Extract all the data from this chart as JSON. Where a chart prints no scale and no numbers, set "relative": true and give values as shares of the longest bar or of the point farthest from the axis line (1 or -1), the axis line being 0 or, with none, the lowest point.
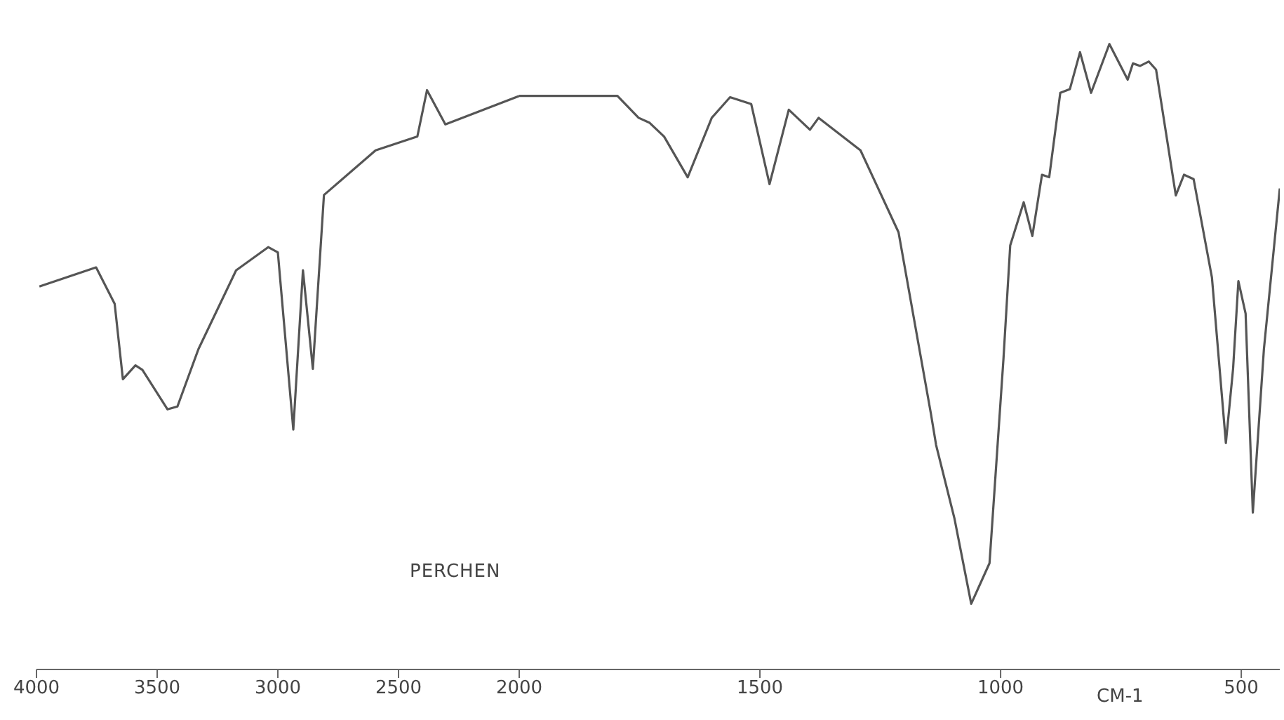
{
  "chart_data": [
    {
      "type": "line",
      "relative": true,
      "annotations": [
        "PERCHEN"
      ],
      "x": [
        3988,
        3753,
        3676,
        3642,
        3590,
        3561,
        3457,
        3416,
        3329,
        3173,
        3040,
        3000,
        2936,
        2896,
        2855,
        2809,
        2595,
        2422,
        2382,
        2306,
        2000
      ],
      "series": [
        {
          "color": "#555555",
          "values": [
            0.661,
            0.694,
            0.631,
            0.501,
            0.525,
            0.517,
            0.449,
            0.454,
            0.553,
            0.689,
            0.729,
            0.72,
            0.414,
            0.689,
            0.519,
            0.819,
            0.896,
            0.92,
            1,
            0.941,
            0.99
          ]
        }
      ],
      "xlim": [
        4000,
        2000
      ],
      "xticks": [
        4000,
        3500,
        3000,
        2500,
        2000
      ],
      "grid": false,
      "legend": false,
      "marker": "none",
      "line_style": "solid"
    },
    {
      "type": "line",
      "relative": true,
      "xlabel": "CM-1",
      "x": [
        2000,
        1962,
        1796,
        1752,
        1729,
        1699,
        1650,
        1600,
        1562,
        1518,
        1480,
        1440,
        1396,
        1378,
        1291,
        1212,
        1145,
        1134,
        1096,
        1061,
        1023,
        994,
        980,
        952,
        934,
        914,
        899,
        876,
        856,
        835,
        812,
        774,
        736,
        725,
        710,
        692,
        677,
        636,
        619,
        599,
        561,
        532,
        517,
        506,
        491,
        476,
        453,
        420
      ],
      "series": [
        {
          "color": "#555555",
          "values": [
            0.917,
            0.917,
            0.917,
            0.882,
            0.874,
            0.852,
            0.787,
            0.882,
            0.915,
            0.904,
            0.776,
            0.895,
            0.863,
            0.882,
            0.83,
            0.699,
            0.41,
            0.359,
            0.242,
            0.105,
            0.17,
            0.497,
            0.678,
            0.747,
            0.693,
            0.791,
            0.787,
            0.922,
            0.928,
            0.987,
            0.922,
            1,
            0.943,
            0.969,
            0.965,
            0.972,
            0.959,
            0.758,
            0.791,
            0.784,
            0.627,
            0.362,
            0.481,
            0.621,
            0.569,
            0.251,
            0.512,
            0.769
          ]
        }
      ],
      "xlim": [
        2000,
        420
      ],
      "xticks": [
        1500,
        1000,
        500
      ],
      "grid": false,
      "legend": false,
      "marker": "none",
      "line_style": "solid"
    }
  ]
}
